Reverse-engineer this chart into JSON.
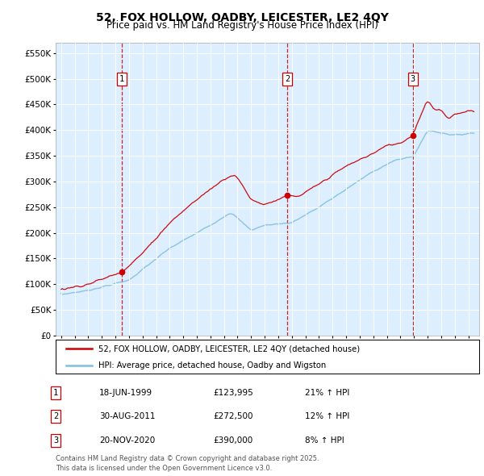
{
  "title": "52, FOX HOLLOW, OADBY, LEICESTER, LE2 4QY",
  "subtitle": "Price paid vs. HM Land Registry's House Price Index (HPI)",
  "bg_color": "#ddeeff",
  "grid_color": "white",
  "y_ticks": [
    0,
    50000,
    100000,
    150000,
    200000,
    250000,
    300000,
    350000,
    400000,
    450000,
    500000,
    550000
  ],
  "y_tick_labels": [
    "£0",
    "£50K",
    "£100K",
    "£150K",
    "£200K",
    "£250K",
    "£300K",
    "£350K",
    "£400K",
    "£450K",
    "£500K",
    "£550K"
  ],
  "hpi_color": "#7fbfdf",
  "price_color": "#cc0000",
  "vline_color": "#cc0000",
  "purchase_dates": [
    1999.46,
    2011.66,
    2020.9
  ],
  "purchase_prices": [
    123995,
    272500,
    390000
  ],
  "purchase_labels": [
    "1",
    "2",
    "3"
  ],
  "legend_label_price": "52, FOX HOLLOW, OADBY, LEICESTER, LE2 4QY (detached house)",
  "legend_label_hpi": "HPI: Average price, detached house, Oadby and Wigston",
  "table_data": [
    [
      "1",
      "18-JUN-1999",
      "£123,995",
      "21% ↑ HPI"
    ],
    [
      "2",
      "30-AUG-2011",
      "£272,500",
      "12% ↑ HPI"
    ],
    [
      "3",
      "20-NOV-2020",
      "£390,000",
      "8% ↑ HPI"
    ]
  ],
  "footer": "Contains HM Land Registry data © Crown copyright and database right 2025.\nThis data is licensed under the Open Government Licence v3.0."
}
